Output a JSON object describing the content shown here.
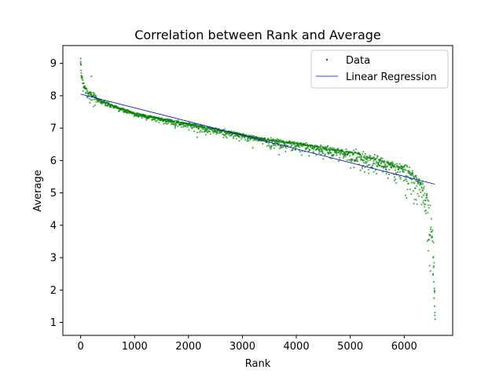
{
  "chart_data": {
    "type": "scatter",
    "title": "Correlation between Rank and Average",
    "xlabel": "Rank",
    "ylabel": "Average",
    "xlim": [
      -330,
      6900
    ],
    "ylim": [
      0.6,
      9.55
    ],
    "xticks": [
      0,
      1000,
      2000,
      3000,
      4000,
      5000,
      6000
    ],
    "yticks": [
      1,
      2,
      3,
      4,
      5,
      6,
      7,
      8,
      9
    ],
    "grid": false,
    "legend": {
      "placement": "top-right",
      "entries": [
        "Data",
        "Linear Regression"
      ]
    },
    "series": [
      {
        "name": "Data",
        "kind": "scatter",
        "color": "#008000",
        "x_range": [
          0,
          6570
        ],
        "approx_center": [
          [
            0,
            8.8
          ],
          [
            50,
            8.4
          ],
          [
            100,
            8.2
          ],
          [
            200,
            8.0
          ],
          [
            400,
            7.82
          ],
          [
            700,
            7.62
          ],
          [
            1000,
            7.45
          ],
          [
            1500,
            7.28
          ],
          [
            2000,
            7.12
          ],
          [
            2500,
            6.95
          ],
          [
            3000,
            6.78
          ],
          [
            3500,
            6.62
          ],
          [
            4000,
            6.5
          ],
          [
            4500,
            6.38
          ],
          [
            5000,
            6.22
          ],
          [
            5500,
            6.0
          ],
          [
            6000,
            5.7
          ],
          [
            6200,
            5.42
          ],
          [
            6400,
            4.9
          ],
          [
            6500,
            4.2
          ],
          [
            6550,
            3.2
          ],
          [
            6570,
            1.1
          ]
        ]
      },
      {
        "name": "Linear Regression",
        "kind": "line",
        "color": "#0000cc",
        "x": [
          0,
          6570
        ],
        "y": [
          8.05,
          5.27
        ]
      }
    ]
  }
}
